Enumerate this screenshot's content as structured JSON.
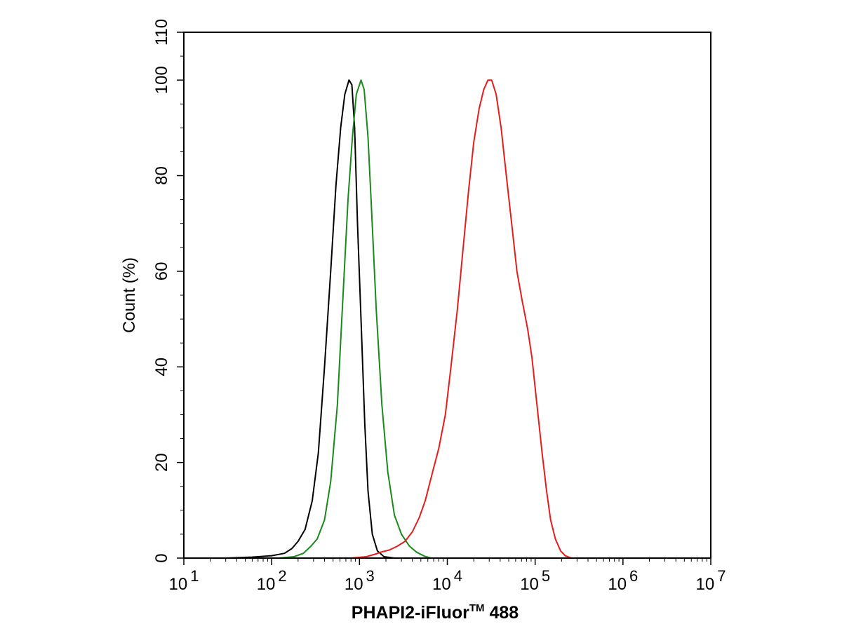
{
  "chart_data": {
    "type": "line",
    "title": "",
    "xlabel": "PHAPI2-iFluor",
    "xlabel_tm": "TM",
    "xlabel_suffix": " 488",
    "ylabel": "Count  (%)",
    "xscale": "log",
    "xlim": [
      10,
      10000000
    ],
    "ylim": [
      0,
      110
    ],
    "x_ticks": [
      {
        "base": "10",
        "exp": "1",
        "value": 10
      },
      {
        "base": "10",
        "exp": "2",
        "value": 100
      },
      {
        "base": "10",
        "exp": "3",
        "value": 1000
      },
      {
        "base": "10",
        "exp": "4",
        "value": 10000
      },
      {
        "base": "10",
        "exp": "5",
        "value": 100000
      },
      {
        "base": "10",
        "exp": "6",
        "value": 1000000
      },
      {
        "base": "10",
        "exp": "7",
        "value": 10000000
      }
    ],
    "y_ticks": [
      "0",
      "20",
      "40",
      "60",
      "80",
      "100",
      "110"
    ],
    "y_tick_values": [
      0,
      20,
      40,
      60,
      80,
      100,
      110
    ],
    "grid": false,
    "legend": "none",
    "series": [
      {
        "color": "#000000",
        "points": [
          [
            30,
            0
          ],
          [
            60,
            0.2
          ],
          [
            100,
            0.5
          ],
          [
            140,
            1.0
          ],
          [
            170,
            2.0
          ],
          [
            200,
            3.5
          ],
          [
            240,
            6
          ],
          [
            290,
            12
          ],
          [
            340,
            22
          ],
          [
            400,
            40
          ],
          [
            470,
            60
          ],
          [
            540,
            78
          ],
          [
            610,
            90
          ],
          [
            680,
            97
          ],
          [
            760,
            100
          ],
          [
            820,
            99
          ],
          [
            880,
            90
          ],
          [
            950,
            70
          ],
          [
            1050,
            48
          ],
          [
            1150,
            28
          ],
          [
            1250,
            14
          ],
          [
            1400,
            5
          ],
          [
            1600,
            1.5
          ],
          [
            1900,
            0.3
          ],
          [
            2500,
            0
          ]
        ]
      },
      {
        "color": "#1a8a1a",
        "points": [
          [
            120,
            0
          ],
          [
            180,
            0.3
          ],
          [
            230,
            1.0
          ],
          [
            280,
            2.5
          ],
          [
            330,
            4
          ],
          [
            400,
            8
          ],
          [
            470,
            16
          ],
          [
            560,
            32
          ],
          [
            650,
            55
          ],
          [
            740,
            75
          ],
          [
            830,
            88
          ],
          [
            920,
            97
          ],
          [
            1040,
            100
          ],
          [
            1130,
            98
          ],
          [
            1250,
            88
          ],
          [
            1380,
            72
          ],
          [
            1550,
            52
          ],
          [
            1800,
            32
          ],
          [
            2100,
            18
          ],
          [
            2500,
            9
          ],
          [
            3000,
            5
          ],
          [
            3700,
            2.5
          ],
          [
            4500,
            1.2
          ],
          [
            5500,
            0.4
          ],
          [
            6500,
            0
          ]
        ]
      },
      {
        "color": "#e61c1c",
        "points": [
          [
            800,
            0
          ],
          [
            1200,
            0.3
          ],
          [
            1500,
            0.8
          ],
          [
            1800,
            1.3
          ],
          [
            2200,
            1.7
          ],
          [
            2700,
            2.5
          ],
          [
            3300,
            3.5
          ],
          [
            4000,
            5.5
          ],
          [
            4800,
            8.5
          ],
          [
            5600,
            12
          ],
          [
            6800,
            18
          ],
          [
            8000,
            23
          ],
          [
            9500,
            30
          ],
          [
            11000,
            40
          ],
          [
            13000,
            52
          ],
          [
            15000,
            64
          ],
          [
            17500,
            77
          ],
          [
            20000,
            87
          ],
          [
            23000,
            94
          ],
          [
            26000,
            98
          ],
          [
            29000,
            100
          ],
          [
            32000,
            100
          ],
          [
            36000,
            97
          ],
          [
            41000,
            90
          ],
          [
            47000,
            80
          ],
          [
            54000,
            70
          ],
          [
            62000,
            60
          ],
          [
            71000,
            54
          ],
          [
            82000,
            48
          ],
          [
            92000,
            42
          ],
          [
            105000,
            32
          ],
          [
            120000,
            22
          ],
          [
            135000,
            14
          ],
          [
            150000,
            8
          ],
          [
            170000,
            4
          ],
          [
            195000,
            1.5
          ],
          [
            220000,
            0.5
          ],
          [
            260000,
            0
          ]
        ]
      }
    ]
  }
}
